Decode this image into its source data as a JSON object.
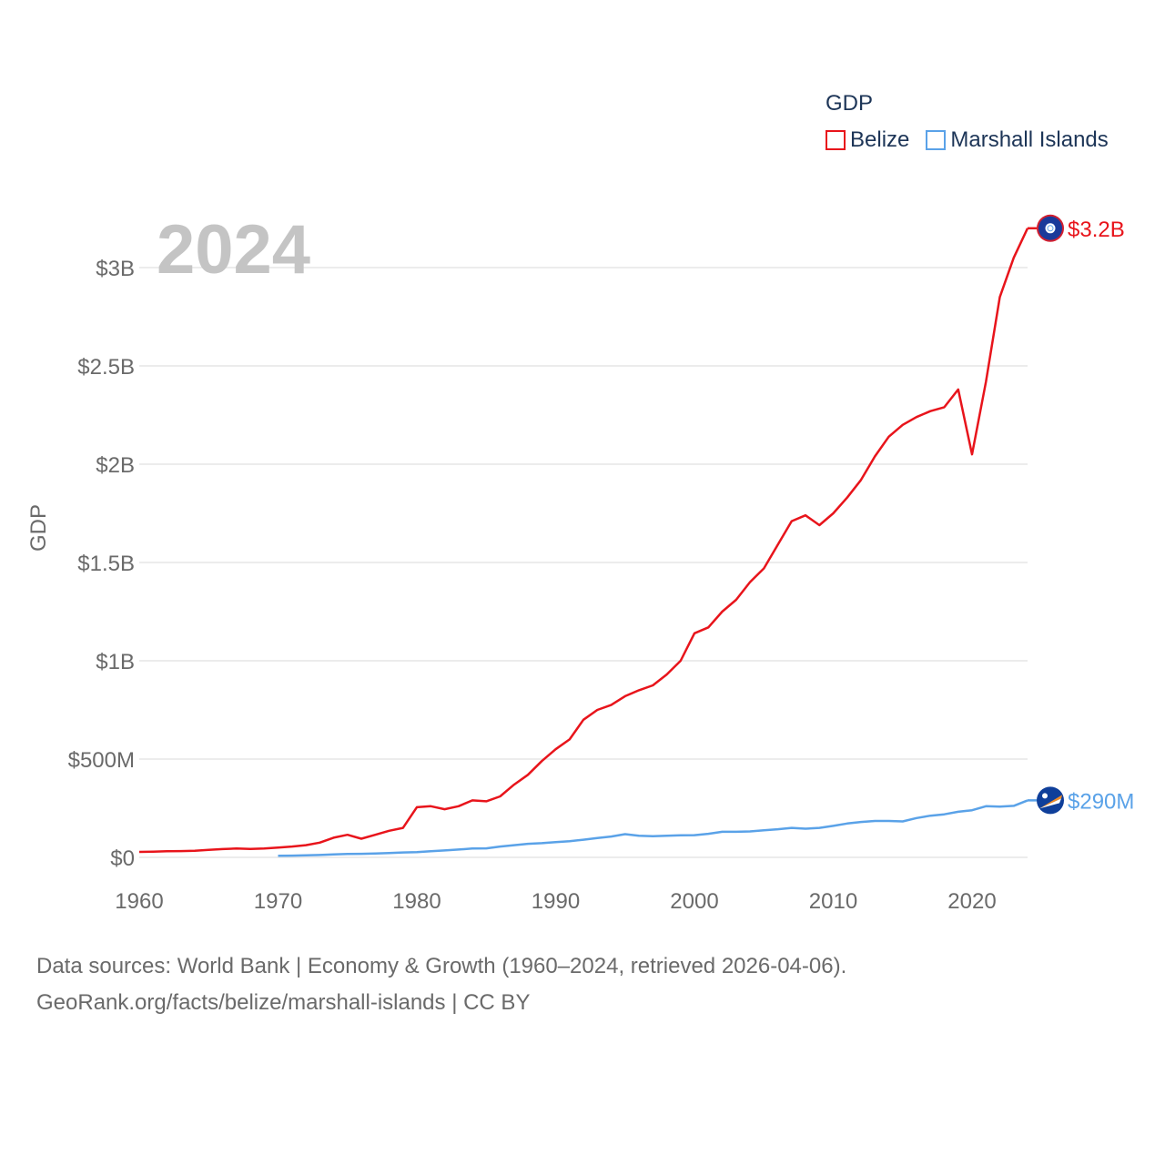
{
  "legend": {
    "title": "GDP",
    "items": [
      {
        "label": "Belize",
        "color": "#e8141b"
      },
      {
        "label": "Marshall Islands",
        "color": "#5aa2e8"
      }
    ]
  },
  "year_label": "2024",
  "sources": {
    "line1": "Data sources: World Bank | Economy & Growth (1960–2024, retrieved 2026-04-06).",
    "line2": "GeoRank.org/facts/belize/marshall-islands | CC BY"
  },
  "chart_data": {
    "type": "line",
    "title": "",
    "xlabel": "",
    "ylabel": "GDP",
    "xlim": [
      1960,
      2024
    ],
    "ylim": [
      0,
      3300000000
    ],
    "x_ticks": [
      1960,
      1970,
      1980,
      1990,
      2000,
      2010,
      2020
    ],
    "x_tick_labels": [
      "1960",
      "1970",
      "1980",
      "1990",
      "2000",
      "2010",
      "2020"
    ],
    "y_ticks": [
      0,
      500000000,
      1000000000,
      1500000000,
      2000000000,
      2500000000,
      3000000000
    ],
    "y_tick_labels": [
      "$0",
      "$500M",
      "$1B",
      "$1.5B",
      "$2B",
      "$2.5B",
      "$3B"
    ],
    "grid": true,
    "legend_position": "top-right",
    "series": [
      {
        "name": "Belize",
        "color": "#e8141b",
        "end_label": "$3.2B",
        "flag_icon": "belize-flag-icon",
        "points": [
          [
            1960,
            28000000
          ],
          [
            1961,
            29000000
          ],
          [
            1962,
            31000000
          ],
          [
            1963,
            32000000
          ],
          [
            1964,
            34000000
          ],
          [
            1965,
            38000000
          ],
          [
            1966,
            42000000
          ],
          [
            1967,
            45000000
          ],
          [
            1968,
            43000000
          ],
          [
            1969,
            45000000
          ],
          [
            1970,
            50000000
          ],
          [
            1971,
            55000000
          ],
          [
            1972,
            62000000
          ],
          [
            1973,
            75000000
          ],
          [
            1974,
            100000000
          ],
          [
            1975,
            115000000
          ],
          [
            1976,
            95000000
          ],
          [
            1977,
            115000000
          ],
          [
            1978,
            135000000
          ],
          [
            1979,
            150000000
          ],
          [
            1980,
            255000000
          ],
          [
            1981,
            260000000
          ],
          [
            1982,
            245000000
          ],
          [
            1983,
            260000000
          ],
          [
            1984,
            290000000
          ],
          [
            1985,
            285000000
          ],
          [
            1986,
            310000000
          ],
          [
            1987,
            370000000
          ],
          [
            1988,
            420000000
          ],
          [
            1989,
            490000000
          ],
          [
            1990,
            550000000
          ],
          [
            1991,
            600000000
          ],
          [
            1992,
            700000000
          ],
          [
            1993,
            750000000
          ],
          [
            1994,
            775000000
          ],
          [
            1995,
            820000000
          ],
          [
            1996,
            850000000
          ],
          [
            1997,
            875000000
          ],
          [
            1998,
            930000000
          ],
          [
            1999,
            1000000000
          ],
          [
            2000,
            1140000000
          ],
          [
            2001,
            1170000000
          ],
          [
            2002,
            1250000000
          ],
          [
            2003,
            1310000000
          ],
          [
            2004,
            1400000000
          ],
          [
            2005,
            1470000000
          ],
          [
            2006,
            1590000000
          ],
          [
            2007,
            1710000000
          ],
          [
            2008,
            1740000000
          ],
          [
            2009,
            1690000000
          ],
          [
            2010,
            1750000000
          ],
          [
            2011,
            1830000000
          ],
          [
            2012,
            1920000000
          ],
          [
            2013,
            2040000000
          ],
          [
            2014,
            2140000000
          ],
          [
            2015,
            2200000000
          ],
          [
            2016,
            2240000000
          ],
          [
            2017,
            2270000000
          ],
          [
            2018,
            2290000000
          ],
          [
            2019,
            2380000000
          ],
          [
            2020,
            2050000000
          ],
          [
            2021,
            2420000000
          ],
          [
            2022,
            2850000000
          ],
          [
            2023,
            3050000000
          ],
          [
            2024,
            3200000000
          ]
        ]
      },
      {
        "name": "Marshall Islands",
        "color": "#5aa2e8",
        "end_label": "$290M",
        "flag_icon": "marshall-islands-flag-icon",
        "points": [
          [
            1970,
            8000000
          ],
          [
            1971,
            9000000
          ],
          [
            1972,
            10000000
          ],
          [
            1973,
            12000000
          ],
          [
            1974,
            15000000
          ],
          [
            1975,
            17000000
          ],
          [
            1976,
            18000000
          ],
          [
            1977,
            20000000
          ],
          [
            1978,
            22000000
          ],
          [
            1979,
            25000000
          ],
          [
            1980,
            27000000
          ],
          [
            1981,
            31000000
          ],
          [
            1982,
            35000000
          ],
          [
            1983,
            40000000
          ],
          [
            1984,
            45000000
          ],
          [
            1985,
            46000000
          ],
          [
            1986,
            55000000
          ],
          [
            1987,
            62000000
          ],
          [
            1988,
            69000000
          ],
          [
            1989,
            72000000
          ],
          [
            1990,
            78000000
          ],
          [
            1991,
            82000000
          ],
          [
            1992,
            90000000
          ],
          [
            1993,
            98000000
          ],
          [
            1994,
            106000000
          ],
          [
            1995,
            118000000
          ],
          [
            1996,
            110000000
          ],
          [
            1997,
            108000000
          ],
          [
            1998,
            110000000
          ],
          [
            1999,
            112000000
          ],
          [
            2000,
            113000000
          ],
          [
            2001,
            120000000
          ],
          [
            2002,
            130000000
          ],
          [
            2003,
            130000000
          ],
          [
            2004,
            132000000
          ],
          [
            2005,
            138000000
          ],
          [
            2006,
            143000000
          ],
          [
            2007,
            150000000
          ],
          [
            2008,
            146000000
          ],
          [
            2009,
            150000000
          ],
          [
            2010,
            160000000
          ],
          [
            2011,
            172000000
          ],
          [
            2012,
            180000000
          ],
          [
            2013,
            185000000
          ],
          [
            2014,
            185000000
          ],
          [
            2015,
            183000000
          ],
          [
            2016,
            200000000
          ],
          [
            2017,
            212000000
          ],
          [
            2018,
            219000000
          ],
          [
            2019,
            232000000
          ],
          [
            2020,
            240000000
          ],
          [
            2021,
            260000000
          ],
          [
            2022,
            258000000
          ],
          [
            2023,
            262000000
          ],
          [
            2024,
            290000000
          ]
        ]
      }
    ]
  }
}
